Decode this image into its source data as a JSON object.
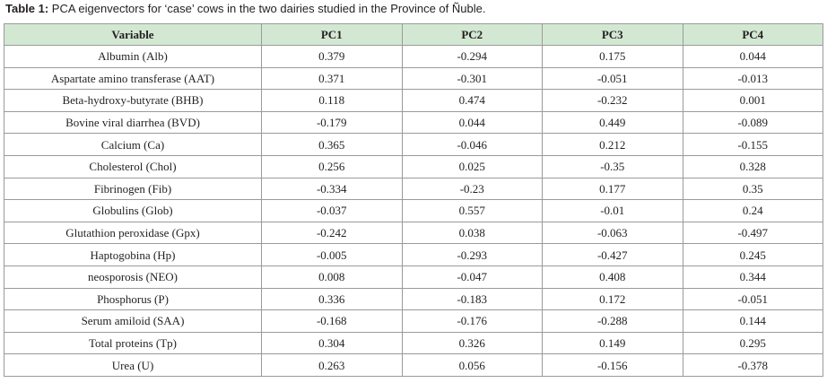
{
  "caption": {
    "label": "Table 1:",
    "text": " PCA eigenvectors for ‘case’ cows in the two dairies studied in the Province of Ñuble."
  },
  "table": {
    "headers": [
      "Variable",
      "PC1",
      "PC2",
      "PC3",
      "PC4"
    ],
    "header_bg": "#d3e8d2",
    "rows": [
      [
        "Albumin (Alb)",
        "0.379",
        "-0.294",
        "0.175",
        "0.044"
      ],
      [
        "Aspartate amino transferase (AAT)",
        "0.371",
        "-0.301",
        "-0.051",
        "-0.013"
      ],
      [
        "Beta-hydroxy-butyrate (BHB)",
        "0.118",
        "0.474",
        "-0.232",
        "0.001"
      ],
      [
        "Bovine viral diarrhea (BVD)",
        "-0.179",
        "0.044",
        "0.449",
        "-0.089"
      ],
      [
        "Calcium (Ca)",
        "0.365",
        "-0.046",
        "0.212",
        "-0.155"
      ],
      [
        "Cholesterol (Chol)",
        "0.256",
        "0.025",
        "-0.35",
        "0.328"
      ],
      [
        "Fibrinogen (Fib)",
        "-0.334",
        "-0.23",
        "0.177",
        "0.35"
      ],
      [
        "Globulins (Glob)",
        "-0.037",
        "0.557",
        "-0.01",
        "0.24"
      ],
      [
        "Glutathion peroxidase (Gpx)",
        "-0.242",
        "0.038",
        "-0.063",
        "-0.497"
      ],
      [
        "Haptogobina (Hp)",
        "-0.005",
        "-0.293",
        "-0.427",
        "0.245"
      ],
      [
        "neosporosis (NEO)",
        "0.008",
        "-0.047",
        "0.408",
        "0.344"
      ],
      [
        "Phosphorus (P)",
        "0.336",
        "-0.183",
        "0.172",
        "-0.051"
      ],
      [
        "Serum amiloid (SAA)",
        "-0.168",
        "-0.176",
        "-0.288",
        "0.144"
      ],
      [
        "Total proteins (Tp)",
        "0.304",
        "0.326",
        "0.149",
        "0.295"
      ],
      [
        "Urea (U)",
        "0.263",
        "0.056",
        "-0.156",
        "-0.378"
      ]
    ]
  }
}
